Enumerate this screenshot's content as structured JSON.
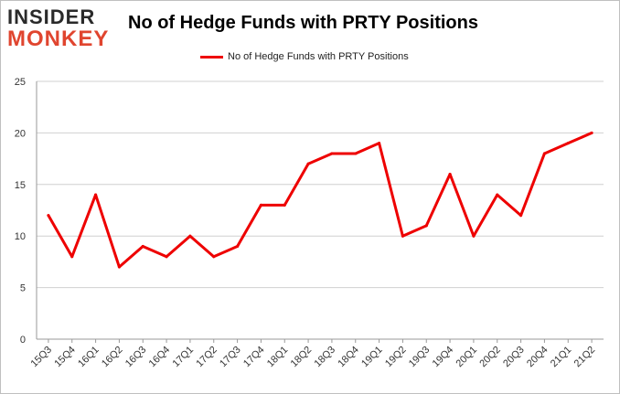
{
  "logo": {
    "line1": "INSIDER",
    "line2": "MONKEY"
  },
  "colors": {
    "series": "#ee0000",
    "grid": "#d0d0d0",
    "axis": "#999999"
  },
  "chart_data": {
    "type": "line",
    "title": "No of Hedge Funds with PRTY Positions",
    "xlabel": "",
    "ylabel": "",
    "ylim": [
      0,
      25
    ],
    "yticks": [
      0,
      5,
      10,
      15,
      20,
      25
    ],
    "grid": true,
    "legend": "top-center",
    "categories": [
      "15Q3",
      "15Q4",
      "16Q1",
      "16Q2",
      "16Q3",
      "16Q4",
      "17Q1",
      "17Q2",
      "17Q3",
      "17Q4",
      "18Q1",
      "18Q2",
      "18Q3",
      "18Q4",
      "19Q1",
      "19Q2",
      "19Q3",
      "19Q4",
      "20Q1",
      "20Q2",
      "20Q3",
      "20Q4",
      "21Q1",
      "21Q2"
    ],
    "series": [
      {
        "name": "No of Hedge Funds with PRTY Positions",
        "values": [
          12,
          8,
          14,
          7,
          9,
          8,
          10,
          8,
          9,
          13,
          13,
          17,
          18,
          18,
          19,
          10,
          11,
          16,
          10,
          14,
          12,
          18,
          19,
          20
        ]
      }
    ]
  }
}
